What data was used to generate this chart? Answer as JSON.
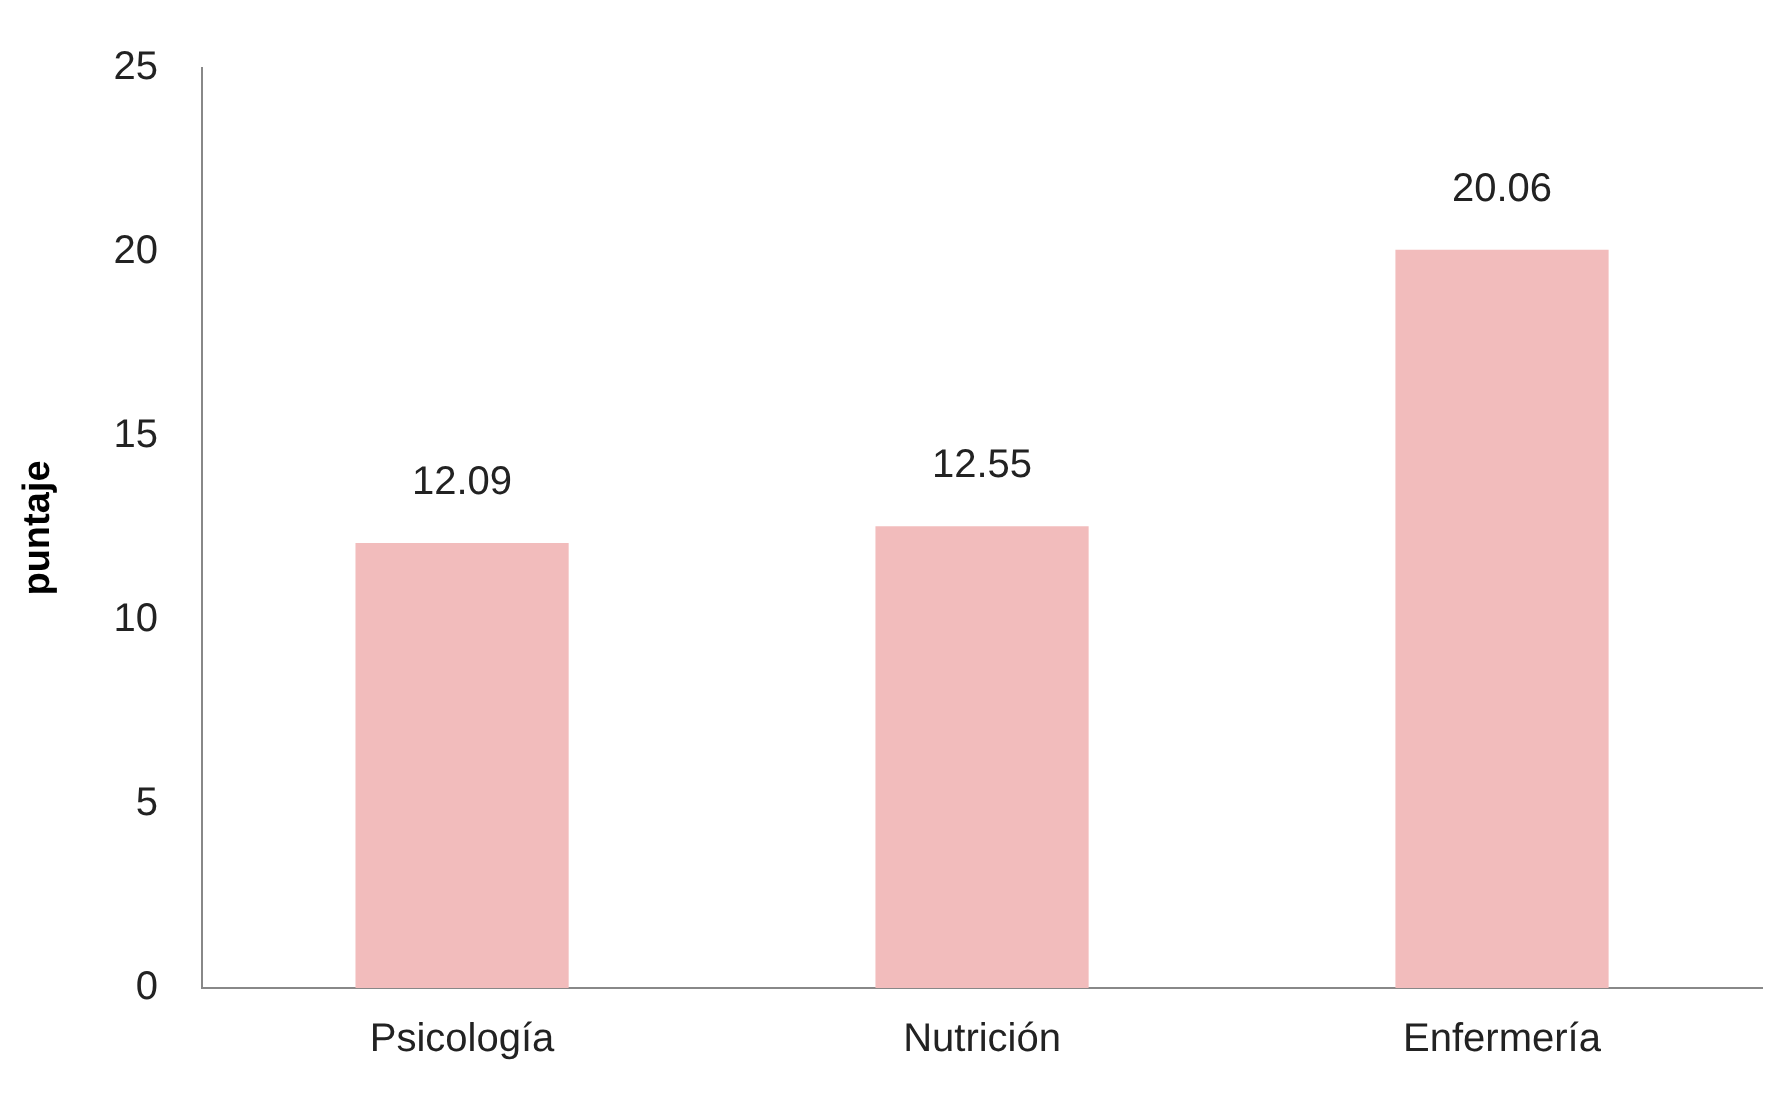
{
  "chart_data": {
    "type": "bar",
    "ylabel": "puntaje",
    "categories": [
      "Psicología",
      "Nutrición",
      "Enfermería"
    ],
    "values": [
      12.09,
      12.55,
      20.06
    ],
    "color": "#f2bcbc",
    "ylim": [
      0,
      25
    ],
    "yticks": [
      0,
      5,
      10,
      15,
      20,
      25
    ],
    "grid": false,
    "legend": false,
    "data_labels": true
  }
}
